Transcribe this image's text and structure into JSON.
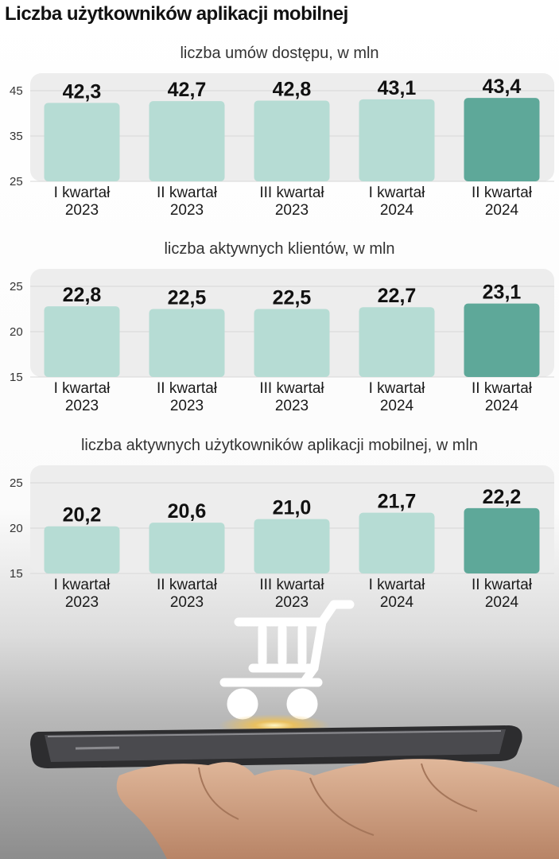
{
  "title": "Liczba użytkowników aplikacji mobilnej",
  "colors": {
    "bar": "#b6dcd4",
    "bar_highlight": "#5ea899",
    "plot_band": "#ededed",
    "grid": "#d8d8d8"
  },
  "chart_data": [
    {
      "type": "bar",
      "title": "liczba umów dostępu, w mln",
      "categories": [
        [
          "I kwartał",
          "2023"
        ],
        [
          "II kwartał",
          "2023"
        ],
        [
          "III kwartał",
          "2023"
        ],
        [
          "I kwartał",
          "2024"
        ],
        [
          "II kwartał",
          "2024"
        ]
      ],
      "values": [
        42.3,
        42.7,
        42.8,
        43.1,
        43.4
      ],
      "value_labels": [
        "42,3",
        "42,7",
        "42,8",
        "43,1",
        "43,4"
      ],
      "yticks": [
        25,
        35,
        45
      ],
      "ylim": [
        25,
        45
      ],
      "highlight_index": 4,
      "grid": true
    },
    {
      "type": "bar",
      "title": "liczba aktywnych klientów, w mln",
      "categories": [
        [
          "I kwartał",
          "2023"
        ],
        [
          "II kwartał",
          "2023"
        ],
        [
          "III kwartał",
          "2023"
        ],
        [
          "I kwartał",
          "2024"
        ],
        [
          "II kwartał",
          "2024"
        ]
      ],
      "values": [
        22.8,
        22.5,
        22.5,
        22.7,
        23.1
      ],
      "value_labels": [
        "22,8",
        "22,5",
        "22,5",
        "22,7",
        "23,1"
      ],
      "yticks": [
        15,
        20,
        25
      ],
      "ylim": [
        15,
        25
      ],
      "highlight_index": 4,
      "grid": true
    },
    {
      "type": "bar",
      "title": "liczba aktywnych użytkowników aplikacji mobilnej, w mln",
      "categories": [
        [
          "I kwartał",
          "2023"
        ],
        [
          "II kwartał",
          "2023"
        ],
        [
          "III kwartał",
          "2023"
        ],
        [
          "I kwartał",
          "2024"
        ],
        [
          "II kwartał",
          "2024"
        ]
      ],
      "values": [
        20.2,
        20.6,
        21.0,
        21.7,
        22.2
      ],
      "value_labels": [
        "20,2",
        "20,6",
        "21,0",
        "21,7",
        "22,2"
      ],
      "yticks": [
        15,
        20,
        25
      ],
      "ylim": [
        15,
        25
      ],
      "highlight_index": 4,
      "grid": true
    }
  ],
  "decor": {
    "icons": [
      "shopping-cart-icon",
      "smartphone-icon",
      "hand-icon"
    ]
  }
}
